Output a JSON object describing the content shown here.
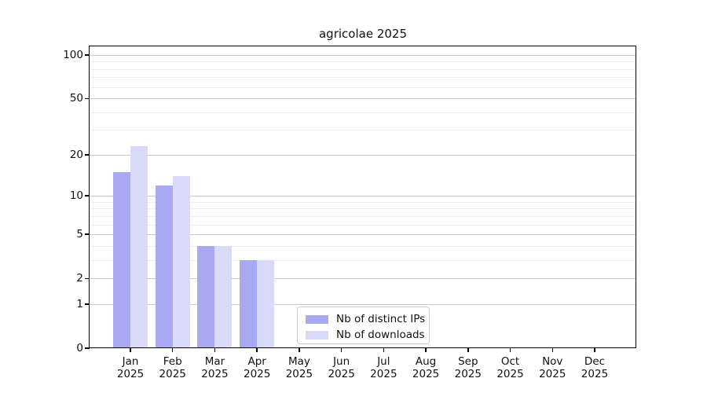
{
  "chart_data": {
    "type": "bar",
    "title": "agricolae 2025",
    "year_label": "2025",
    "categories": [
      "Jan",
      "Feb",
      "Mar",
      "Apr",
      "May",
      "Jun",
      "Jul",
      "Aug",
      "Sep",
      "Oct",
      "Nov",
      "Dec"
    ],
    "series": [
      {
        "name": "Nb of distinct IPs",
        "color": "#a9a9f2",
        "values": [
          15,
          12,
          4,
          3,
          0,
          0,
          0,
          0,
          0,
          0,
          0,
          0
        ]
      },
      {
        "name": "Nb of downloads",
        "color": "#d9d9f8",
        "values": [
          23,
          14,
          4,
          3,
          0,
          0,
          0,
          0,
          0,
          0,
          0,
          0
        ]
      }
    ],
    "xlabel": "",
    "ylabel": "",
    "yscale": "log1p",
    "ylim": [
      0,
      115
    ],
    "y_ticks": [
      100,
      50,
      20,
      10,
      5,
      2,
      1,
      0
    ],
    "y_minor_ticks": [
      3,
      4,
      6,
      7,
      8,
      9,
      30,
      40,
      60,
      70,
      80,
      90
    ],
    "grid": true,
    "legend_position": "inside-bottom-center"
  }
}
